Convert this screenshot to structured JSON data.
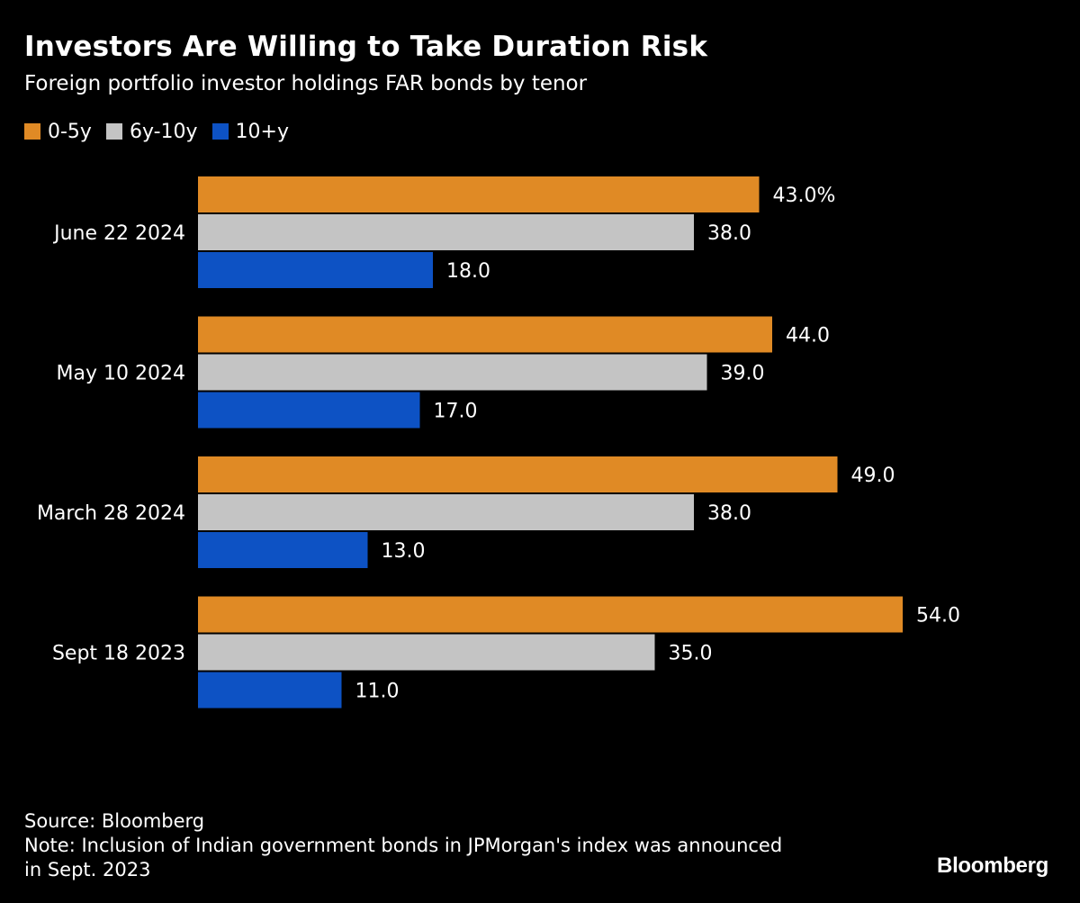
{
  "chart_data": {
    "type": "bar",
    "orientation": "horizontal",
    "title": "Investors Are Willing to Take Duration Risk",
    "subtitle": "Foreign portfolio investor holdings FAR bonds by tenor",
    "categories": [
      "June 22 2024",
      "May 10 2024",
      "March 28 2024",
      "Sept 18 2023"
    ],
    "series": [
      {
        "name": "0-5y",
        "color": "#e08a25",
        "values": [
          43.0,
          44.0,
          49.0,
          54.0
        ],
        "labels": [
          "43.0%",
          "44.0",
          "49.0",
          "54.0"
        ]
      },
      {
        "name": "6y-10y",
        "color": "#c4c4c4",
        "values": [
          38.0,
          39.0,
          38.0,
          35.0
        ],
        "labels": [
          "38.0",
          "39.0",
          "38.0",
          "35.0"
        ]
      },
      {
        "name": "10+y",
        "color": "#0d52c4",
        "values": [
          18.0,
          17.0,
          13.0,
          11.0
        ],
        "labels": [
          "18.0",
          "17.0",
          "13.0",
          "11.0"
        ]
      }
    ],
    "xlim": [
      0,
      60
    ],
    "xlabel": "",
    "ylabel": "",
    "grid": false,
    "legend": "top-left"
  },
  "footer": {
    "source": "Source: Bloomberg",
    "note_line1": "Note: Inclusion of Indian government bonds in JPMorgan's index was announced",
    "note_line2": "in Sept. 2023"
  },
  "brand": "Bloomberg"
}
